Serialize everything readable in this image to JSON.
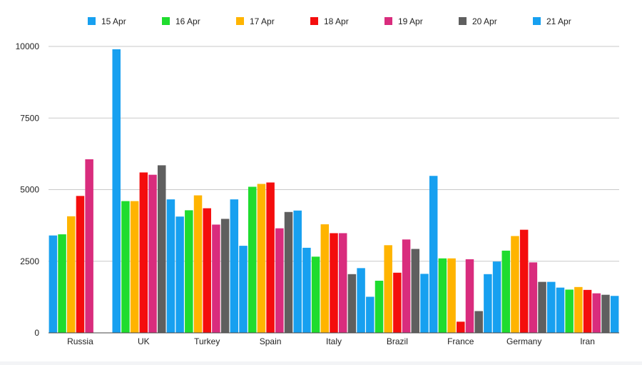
{
  "chart_data": {
    "type": "bar",
    "categories": [
      "Russia",
      "UK",
      "Turkey",
      "Spain",
      "Italy",
      "Brazil",
      "France",
      "Germany",
      "Iran"
    ],
    "series": [
      {
        "name": "15 Apr",
        "color": "#17a0f0",
        "values": [
          3400,
          9900,
          4060,
          3040,
          2970,
          1260,
          5480,
          2490,
          1580
        ]
      },
      {
        "name": "16 Apr",
        "color": "#1fdc2e",
        "values": [
          3440,
          4600,
          4280,
          5100,
          2660,
          1820,
          2600,
          2870,
          1510
        ]
      },
      {
        "name": "17 Apr",
        "color": "#ffb400",
        "values": [
          4070,
          4600,
          4800,
          5200,
          3790,
          3060,
          2600,
          3380,
          1600
        ]
      },
      {
        "name": "18 Apr",
        "color": "#f40d0d",
        "values": [
          4780,
          5600,
          4350,
          5250,
          3480,
          2100,
          390,
          3600,
          1500
        ]
      },
      {
        "name": "19 Apr",
        "color": "#d92c7d",
        "values": [
          6060,
          5520,
          3780,
          3650,
          3480,
          3260,
          2570,
          2460,
          1380
        ]
      },
      {
        "name": "20 Apr",
        "color": "#5f5f5f",
        "values": [
          null,
          5850,
          3980,
          4220,
          2050,
          2930,
          760,
          1780,
          1330
        ]
      },
      {
        "name": "21 Apr",
        "color": "#17a0f0",
        "values": [
          null,
          4660,
          4660,
          4270,
          2260,
          2060,
          2050,
          1780,
          1290
        ]
      }
    ],
    "y_ticks": [
      "0",
      "2500",
      "5000",
      "7500",
      "10000"
    ],
    "ylim": [
      0,
      10000
    ],
    "xlabel": "",
    "ylabel": "",
    "title": "",
    "legend_position": "top",
    "grid": true
  }
}
